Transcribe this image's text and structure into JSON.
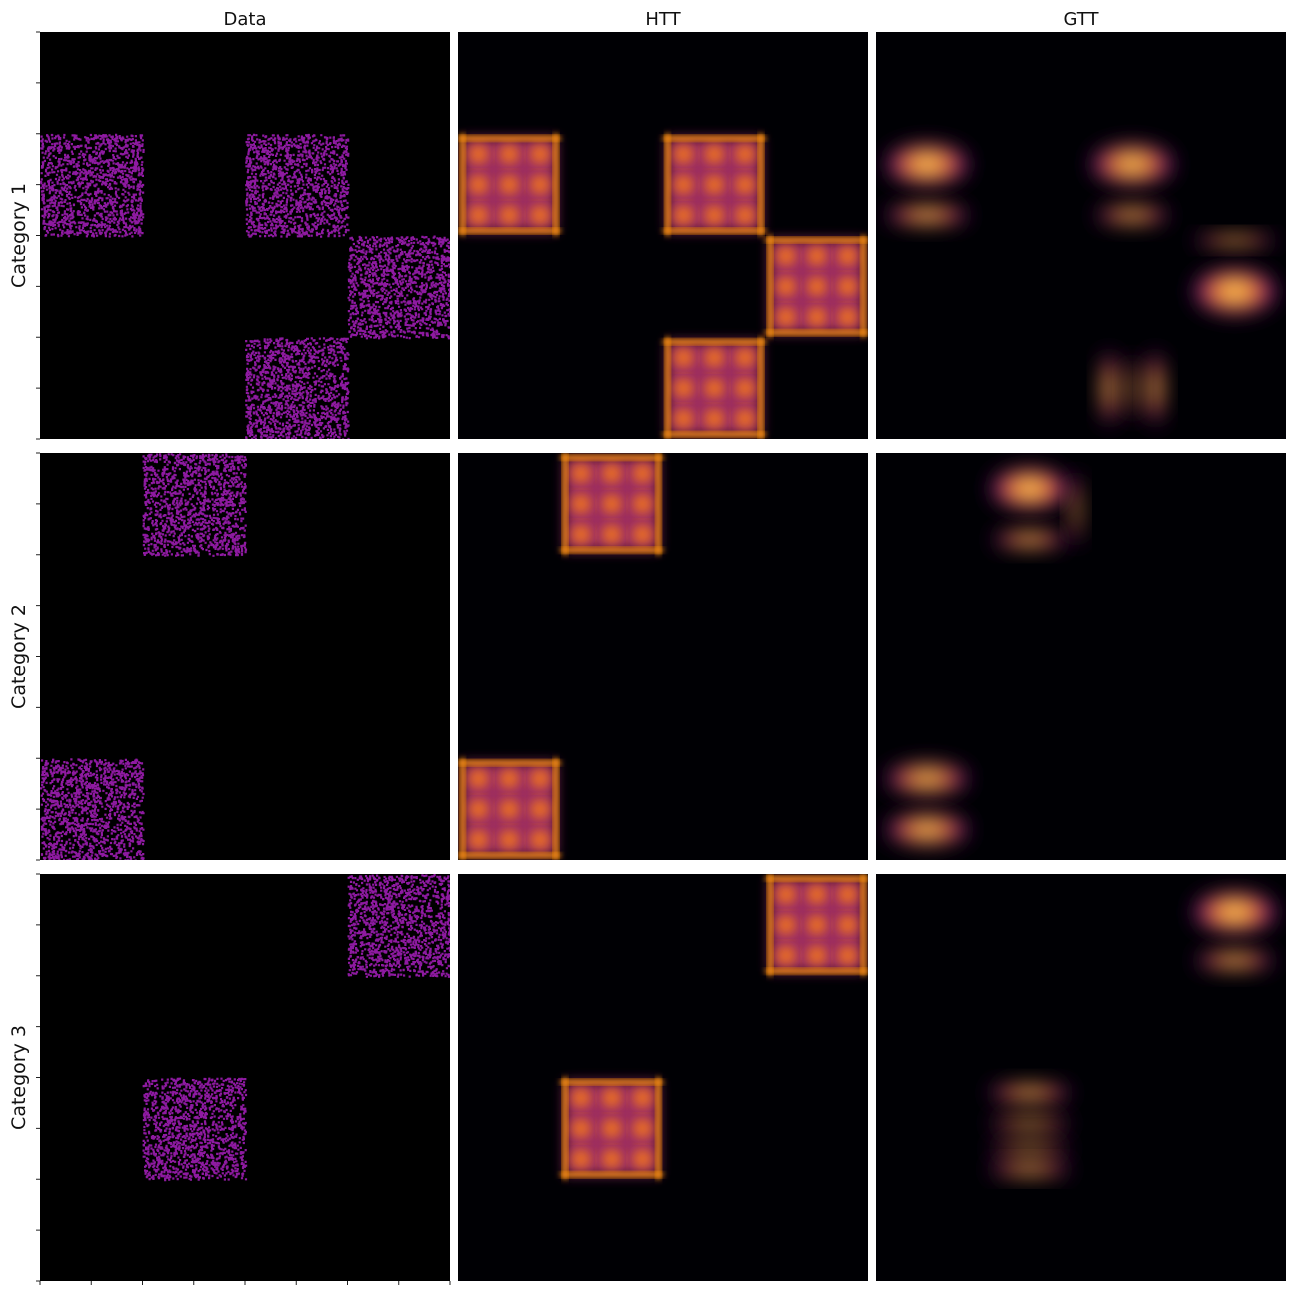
{
  "chart_data": {
    "type": "heatmap",
    "columns": [
      "Data",
      "HTT",
      "GTT"
    ],
    "rows": [
      "Category 1",
      "Category 2",
      "Category 3"
    ],
    "grid": 8,
    "colormap": "inferno",
    "scatter_color": "#8e1aa1",
    "background": "#000004",
    "panels": [
      {
        "category": "Category 1",
        "data_blocks": [
          {
            "col": [
              0,
              2
            ],
            "row": [
              2,
              4
            ]
          },
          {
            "col": [
              4,
              6
            ],
            "row": [
              2,
              4
            ]
          },
          {
            "col": [
              6,
              8
            ],
            "row": [
              4,
              6
            ]
          },
          {
            "col": [
              4,
              6
            ],
            "row": [
              6,
              8
            ]
          }
        ],
        "htt_blocks": [
          {
            "col": [
              0,
              2
            ],
            "row": [
              2,
              4
            ]
          },
          {
            "col": [
              4,
              6
            ],
            "row": [
              2,
              4
            ]
          },
          {
            "col": [
              6,
              8
            ],
            "row": [
              4,
              6
            ]
          },
          {
            "col": [
              4,
              6
            ],
            "row": [
              6,
              8
            ]
          }
        ],
        "gtt_blobs": [
          {
            "cx": 1,
            "cy": 2.6,
            "rx": 0.9,
            "ry": 0.45,
            "i": 1.0
          },
          {
            "cx": 1,
            "cy": 3.6,
            "rx": 0.9,
            "ry": 0.2,
            "i": 1.0
          },
          {
            "cx": 5,
            "cy": 2.6,
            "rx": 0.9,
            "ry": 0.45,
            "i": 0.95
          },
          {
            "cx": 5,
            "cy": 3.6,
            "rx": 0.8,
            "ry": 0.2,
            "i": 0.85
          },
          {
            "cx": 7,
            "cy": 4.1,
            "rx": 0.9,
            "ry": 0.12,
            "i": 0.9
          },
          {
            "cx": 7,
            "cy": 5.1,
            "rx": 0.9,
            "ry": 0.5,
            "i": 1.0
          },
          {
            "cx": 4.55,
            "cy": 7.0,
            "rx": 0.17,
            "ry": 0.8,
            "i": 0.9
          },
          {
            "cx": 5.0,
            "cy": 7.0,
            "rx": 0.15,
            "ry": 0.7,
            "i": 0.55
          },
          {
            "cx": 5.45,
            "cy": 7.0,
            "rx": 0.17,
            "ry": 0.8,
            "i": 0.9
          }
        ]
      },
      {
        "category": "Category 2",
        "data_blocks": [
          {
            "col": [
              2,
              4
            ],
            "row": [
              0,
              2
            ]
          },
          {
            "col": [
              0,
              2
            ],
            "row": [
              6,
              8
            ]
          }
        ],
        "htt_blocks": [
          {
            "col": [
              2,
              4
            ],
            "row": [
              0,
              2
            ]
          },
          {
            "col": [
              0,
              2
            ],
            "row": [
              6,
              8
            ]
          }
        ],
        "gtt_blobs": [
          {
            "cx": 3,
            "cy": 0.7,
            "rx": 0.85,
            "ry": 0.45,
            "i": 1.0
          },
          {
            "cx": 3,
            "cy": 1.7,
            "rx": 0.8,
            "ry": 0.18,
            "i": 0.95
          },
          {
            "cx": 3.9,
            "cy": 1.1,
            "rx": 0.12,
            "ry": 0.8,
            "i": 0.7
          },
          {
            "cx": 1,
            "cy": 6.4,
            "rx": 0.9,
            "ry": 0.35,
            "i": 0.9
          },
          {
            "cx": 1,
            "cy": 7.4,
            "rx": 0.9,
            "ry": 0.35,
            "i": 0.95
          }
        ]
      },
      {
        "category": "Category 3",
        "data_blocks": [
          {
            "col": [
              6,
              8
            ],
            "row": [
              0,
              2
            ]
          },
          {
            "col": [
              2,
              4
            ],
            "row": [
              4,
              6
            ]
          }
        ],
        "htt_blocks": [
          {
            "col": [
              6,
              8
            ],
            "row": [
              0,
              2
            ]
          },
          {
            "col": [
              2,
              4
            ],
            "row": [
              4,
              6
            ]
          }
        ],
        "gtt_blobs": [
          {
            "cx": 7,
            "cy": 0.75,
            "rx": 0.9,
            "ry": 0.45,
            "i": 1.0
          },
          {
            "cx": 7,
            "cy": 1.7,
            "rx": 0.85,
            "ry": 0.2,
            "i": 0.9
          },
          {
            "cx": 3,
            "cy": 4.3,
            "rx": 0.9,
            "ry": 0.18,
            "i": 0.9
          },
          {
            "cx": 3,
            "cy": 4.9,
            "rx": 0.9,
            "ry": 0.2,
            "i": 0.6
          },
          {
            "cx": 3,
            "cy": 5.4,
            "rx": 0.9,
            "ry": 0.18,
            "i": 0.6
          },
          {
            "cx": 3,
            "cy": 5.8,
            "rx": 0.9,
            "ry": 0.15,
            "i": 0.9
          }
        ]
      }
    ]
  }
}
